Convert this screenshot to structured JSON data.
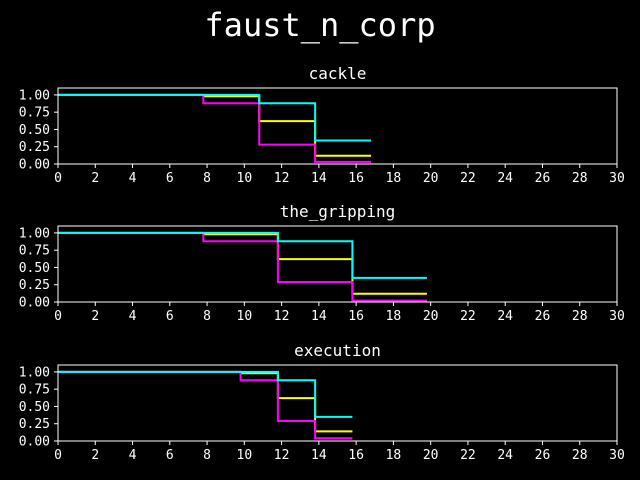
{
  "suptitle": "faust_n_corp",
  "chart_data": [
    {
      "type": "line",
      "step": true,
      "title": "cackle",
      "xlim": [
        0,
        30
      ],
      "ylim": [
        0,
        1.1
      ],
      "xticks": [
        "0",
        "2",
        "4",
        "6",
        "8",
        "10",
        "12",
        "14",
        "16",
        "18",
        "20",
        "22",
        "24",
        "26",
        "28",
        "30"
      ],
      "yticks": [
        "0.00",
        "0.25",
        "0.50",
        "0.75",
        "1.00"
      ],
      "series": [
        {
          "color": "#ffff00",
          "x": [
            0,
            7.8,
            10.8,
            13.8,
            16.8
          ],
          "y": [
            1.0,
            0.98,
            0.62,
            0.12,
            0.12
          ]
        },
        {
          "color": "#ff00ff",
          "x": [
            0,
            7.8,
            10.8,
            13.8,
            16.8
          ],
          "y": [
            1.0,
            0.88,
            0.28,
            0.03,
            0.03
          ]
        },
        {
          "color": "#00ffff",
          "x": [
            0,
            10.8,
            13.8,
            16.8
          ],
          "y": [
            1.0,
            0.88,
            0.34,
            0.34
          ]
        }
      ]
    },
    {
      "type": "line",
      "step": true,
      "title": "the_gripping",
      "xlim": [
        0,
        30
      ],
      "ylim": [
        0,
        1.1
      ],
      "xticks": [
        "0",
        "2",
        "4",
        "6",
        "8",
        "10",
        "12",
        "14",
        "16",
        "18",
        "20",
        "22",
        "24",
        "26",
        "28",
        "30"
      ],
      "yticks": [
        "0.00",
        "0.25",
        "0.50",
        "0.75",
        "1.00"
      ],
      "series": [
        {
          "color": "#ffff00",
          "x": [
            0,
            7.8,
            11.8,
            15.8,
            19.8
          ],
          "y": [
            1.0,
            0.98,
            0.62,
            0.12,
            0.12
          ]
        },
        {
          "color": "#ff00ff",
          "x": [
            0,
            7.8,
            11.8,
            15.8,
            19.8
          ],
          "y": [
            1.0,
            0.88,
            0.29,
            0.02,
            0.02
          ]
        },
        {
          "color": "#00ffff",
          "x": [
            0,
            11.8,
            15.8,
            19.8
          ],
          "y": [
            1.0,
            0.88,
            0.35,
            0.35
          ]
        }
      ]
    },
    {
      "type": "line",
      "step": true,
      "title": "execution",
      "xlim": [
        0,
        30
      ],
      "ylim": [
        0,
        1.1
      ],
      "xticks": [
        "0",
        "2",
        "4",
        "6",
        "8",
        "10",
        "12",
        "14",
        "16",
        "18",
        "20",
        "22",
        "24",
        "26",
        "28",
        "30"
      ],
      "yticks": [
        "0.00",
        "0.25",
        "0.50",
        "0.75",
        "1.00"
      ],
      "series": [
        {
          "color": "#ffff00",
          "x": [
            0,
            9.8,
            11.8,
            13.8,
            15.8
          ],
          "y": [
            1.0,
            0.98,
            0.62,
            0.14,
            0.14
          ]
        },
        {
          "color": "#ff00ff",
          "x": [
            0,
            9.8,
            11.8,
            13.8,
            15.8
          ],
          "y": [
            1.0,
            0.88,
            0.29,
            0.04,
            0.04
          ]
        },
        {
          "color": "#00ffff",
          "x": [
            0,
            11.8,
            13.8,
            15.8
          ],
          "y": [
            1.0,
            0.88,
            0.35,
            0.35
          ]
        }
      ]
    }
  ]
}
